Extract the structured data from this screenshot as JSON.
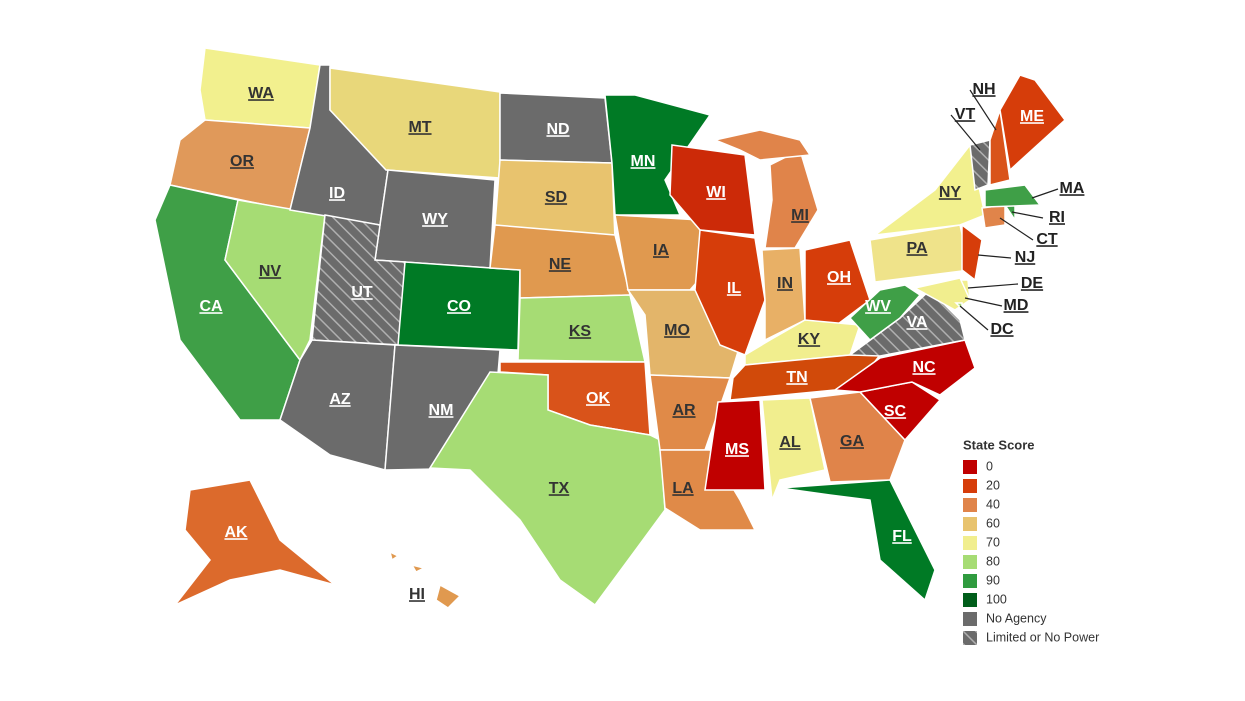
{
  "states": [
    {
      "label": "WA",
      "color": "#f2f08e"
    },
    {
      "label": "OR",
      "color": "#e0995a"
    },
    {
      "label": "CA",
      "color": "#3f9f47"
    },
    {
      "label": "NV",
      "color": "#a6dc74"
    },
    {
      "label": "ID",
      "color": "#6b6b6b"
    },
    {
      "label": "MT",
      "color": "#e8d77a"
    },
    {
      "label": "WY",
      "color": "#6b6b6b"
    },
    {
      "label": "UT",
      "color": "#6b6b6b",
      "hatched": true
    },
    {
      "label": "CO",
      "color": "#007a25"
    },
    {
      "label": "AZ",
      "color": "#6b6b6b"
    },
    {
      "label": "NM",
      "color": "#6b6b6b"
    },
    {
      "label": "ND",
      "color": "#6b6b6b"
    },
    {
      "label": "SD",
      "color": "#e8c36e"
    },
    {
      "label": "NE",
      "color": "#e0994f"
    },
    {
      "label": "KS",
      "color": "#a6dc74"
    },
    {
      "label": "OK",
      "color": "#d9531a"
    },
    {
      "label": "TX",
      "color": "#a6dc74"
    },
    {
      "label": "MN",
      "color": "#007a25"
    },
    {
      "label": "IA",
      "color": "#e0994f"
    },
    {
      "label": "MO",
      "color": "#e3b56a"
    },
    {
      "label": "AR",
      "color": "#e08a48"
    },
    {
      "label": "LA",
      "color": "#e08a48"
    },
    {
      "label": "WI",
      "color": "#cc2a08"
    },
    {
      "label": "IL",
      "color": "#d63d0a"
    },
    {
      "label": "MI",
      "color": "#e0844a"
    },
    {
      "label": "IN",
      "color": "#e8b066"
    },
    {
      "label": "OH",
      "color": "#d63d0a"
    },
    {
      "label": "KY",
      "color": "#f1ee8e"
    },
    {
      "label": "TN",
      "color": "#d14a0a"
    },
    {
      "label": "MS",
      "color": "#c00000"
    },
    {
      "label": "AL",
      "color": "#f1ee8e"
    },
    {
      "label": "GA",
      "color": "#e0844a"
    },
    {
      "label": "FL",
      "color": "#007a25"
    },
    {
      "label": "SC",
      "color": "#c00000"
    },
    {
      "label": "NC",
      "color": "#c00000"
    },
    {
      "label": "VA",
      "color": "#6b6b6b",
      "hatched": true
    },
    {
      "label": "WV",
      "color": "#3f9f47"
    },
    {
      "label": "PA",
      "color": "#efe38a"
    },
    {
      "label": "NY",
      "color": "#f2f08e"
    },
    {
      "label": "NJ",
      "color": "#d63d0a"
    },
    {
      "label": "DE",
      "color": "#f1ee8e"
    },
    {
      "label": "MD",
      "color": "#f1ee8e"
    },
    {
      "label": "DC",
      "color": "#a6dc74"
    },
    {
      "label": "CT",
      "color": "#e0844a"
    },
    {
      "label": "RI",
      "color": "#3f9f47"
    },
    {
      "label": "MA",
      "color": "#3f9f47"
    },
    {
      "label": "VT",
      "color": "#6b6b6b",
      "hatched": true
    },
    {
      "label": "NH",
      "color": "#d9531a"
    },
    {
      "label": "ME",
      "color": "#d63d0a"
    },
    {
      "label": "AK",
      "color": "#dc6a2c"
    },
    {
      "label": "HI",
      "color": "#e0994f"
    }
  ],
  "legend": {
    "title": "State Score",
    "items": [
      {
        "label": "0",
        "color": "#c00000"
      },
      {
        "label": "20",
        "color": "#d63d0a"
      },
      {
        "label": "40",
        "color": "#e0844a"
      },
      {
        "label": "60",
        "color": "#e8c36e"
      },
      {
        "label": "70",
        "color": "#f1ee8e"
      },
      {
        "label": "80",
        "color": "#a6dc74"
      },
      {
        "label": "90",
        "color": "#2f9b3f"
      },
      {
        "label": "100",
        "color": "#005e1a"
      },
      {
        "label": "No Agency",
        "color": "#6b6b6b"
      },
      {
        "label": "Limited or No Power",
        "color": "#6b6b6b",
        "hatched": true
      }
    ]
  }
}
